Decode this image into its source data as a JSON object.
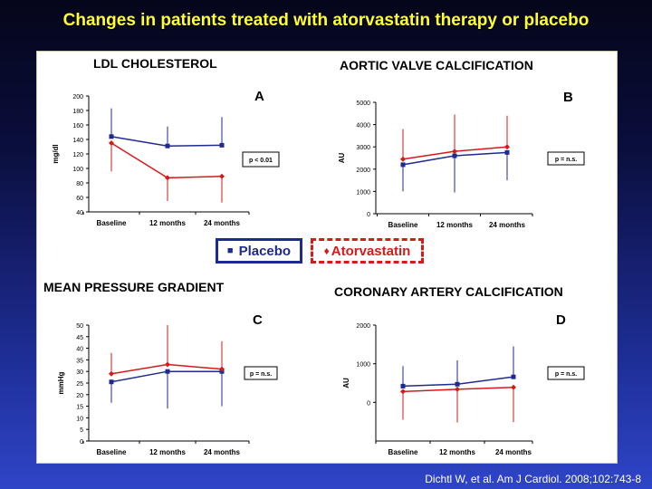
{
  "title": "Changes in patients treated with atorvastatin therapy or placebo",
  "citation": "Dichtl W, et al. Am J Cardiol. 2008;102:743-8",
  "colors": {
    "placebo": "#1f2a8f",
    "atorvastatin": "#d61a1a",
    "title": "#ffff33"
  },
  "legend": {
    "placebo_marker": "■",
    "placebo_label": "Placebo",
    "atorvastatin_marker": "♦",
    "atorvastatin_label": "Atorvastatin"
  },
  "chart_data": [
    {
      "type": "line",
      "title": "LDL CHOLESTEROL",
      "panel_label": "A",
      "ylabel": "mg/dl",
      "categories": [
        "Baseline",
        "12 months",
        "24 months"
      ],
      "ylim": [
        40,
        200
      ],
      "yticks": [
        40,
        60,
        80,
        100,
        120,
        140,
        160,
        180,
        200
      ],
      "p_value": "p < 0.01",
      "series": [
        {
          "name": "Placebo",
          "values": [
            144,
            131,
            132
          ],
          "err_up": [
            39,
            27,
            39
          ],
          "err_down": [
            0,
            0,
            0
          ]
        },
        {
          "name": "Atorvastatin",
          "values": [
            135,
            87,
            89
          ],
          "err_up": [
            0,
            0,
            0
          ],
          "err_down": [
            39,
            32,
            36
          ]
        }
      ]
    },
    {
      "type": "line",
      "title": "AORTIC VALVE CALCIFICATION",
      "panel_label": "B",
      "ylabel": "AU",
      "categories": [
        "Baseline",
        "12 months",
        "24 months"
      ],
      "ylim": [
        0,
        5000
      ],
      "yticks": [
        0,
        1000,
        2000,
        3000,
        4000,
        5000
      ],
      "p_value": "p = n.s.",
      "series": [
        {
          "name": "Placebo",
          "values": [
            2200,
            2600,
            2750
          ],
          "err_up": [
            0,
            0,
            0
          ],
          "err_down": [
            1200,
            1650,
            1250
          ]
        },
        {
          "name": "Atorvastatin",
          "values": [
            2450,
            2800,
            3000
          ],
          "err_up": [
            1350,
            1650,
            1400
          ],
          "err_down": [
            0,
            0,
            0
          ]
        }
      ]
    },
    {
      "type": "line",
      "title": "MEAN PRESSURE GRADIENT",
      "panel_label": "C",
      "ylabel": "mmHg",
      "categories": [
        "Baseline",
        "12 months",
        "24 months"
      ],
      "ylim": [
        0,
        50
      ],
      "yticks": [
        0,
        5,
        10,
        15,
        20,
        25,
        30,
        35,
        40,
        45,
        50
      ],
      "p_value": "p = n.s.",
      "series": [
        {
          "name": "Placebo",
          "values": [
            25.5,
            30,
            30
          ],
          "err_up": [
            0,
            0,
            0
          ],
          "err_down": [
            9,
            16,
            15
          ]
        },
        {
          "name": "Atorvastatin",
          "values": [
            29,
            33,
            31
          ],
          "err_up": [
            9,
            17,
            12
          ],
          "err_down": [
            0,
            0,
            0
          ]
        }
      ]
    },
    {
      "type": "line",
      "title": "CORONARY ARTERY CALCIFICATION",
      "panel_label": "D",
      "ylabel": "AU",
      "categories": [
        "Baseline",
        "12 months",
        "24 months"
      ],
      "ylim": [
        -1000,
        2000
      ],
      "yticks": [
        0,
        1000,
        2000
      ],
      "p_value": "p = n.s.",
      "series": [
        {
          "name": "Placebo",
          "values": [
            420,
            470,
            660
          ],
          "err_up": [
            520,
            620,
            790
          ],
          "err_down": [
            0,
            0,
            0
          ]
        },
        {
          "name": "Atorvastatin",
          "values": [
            280,
            340,
            390
          ],
          "err_up": [
            0,
            0,
            0
          ],
          "err_down": [
            730,
            860,
            900
          ]
        }
      ]
    }
  ]
}
